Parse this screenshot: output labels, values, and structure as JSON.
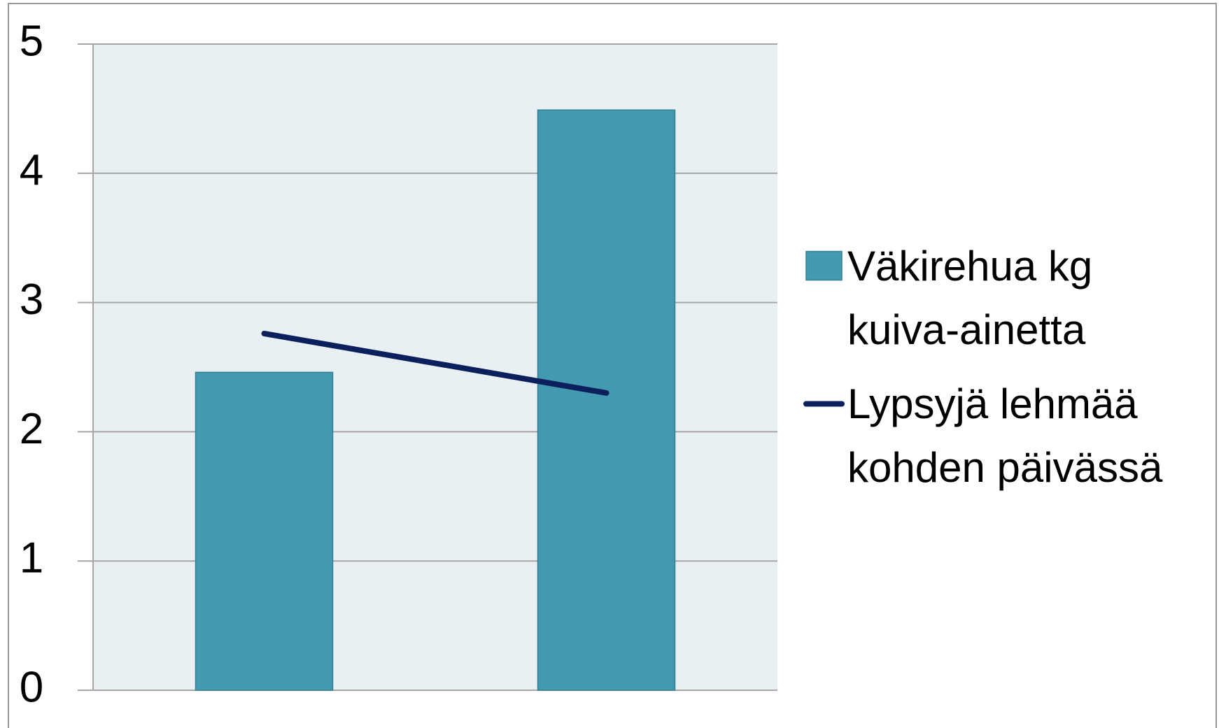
{
  "chart_data": {
    "type": "bar-line",
    "categories": [
      null,
      null
    ],
    "series": [
      {
        "name": "Väkirehua kg kuiva-ainetta",
        "type": "bar",
        "color": "#4399b0",
        "values": [
          2.46,
          4.49
        ]
      },
      {
        "name": "Lypsyjä lehmää kohden päivässä",
        "type": "line",
        "color": "#0b1f5c",
        "values": [
          2.76,
          2.3
        ]
      }
    ],
    "ylim": [
      0,
      5
    ],
    "yticks": [
      0,
      1,
      2,
      3,
      4,
      5
    ],
    "grid": true,
    "legend": "right"
  }
}
